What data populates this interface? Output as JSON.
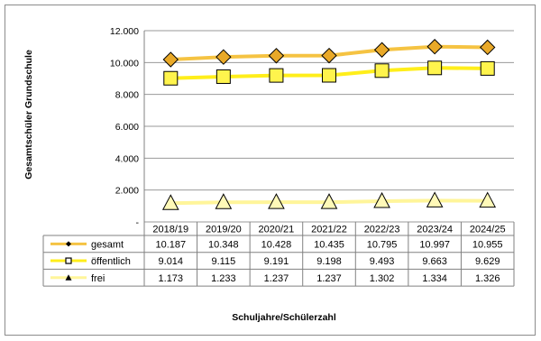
{
  "chart_data": {
    "type": "line",
    "categories": [
      "2018/19",
      "2019/20",
      "2020/21",
      "2021/22",
      "2022/23",
      "2023/24",
      "2024/25"
    ],
    "series": [
      {
        "name": "gesamt",
        "values": [
          10187,
          10348,
          10428,
          10435,
          10795,
          10997,
          10955
        ],
        "labels": [
          "10.187",
          "10.348",
          "10.428",
          "10.435",
          "10.795",
          "10.997",
          "10.955"
        ],
        "color": "#F5C342",
        "marker": "diamond",
        "marker_fill": "#E9A928"
      },
      {
        "name": "öffentlich",
        "values": [
          9014,
          9115,
          9191,
          9198,
          9493,
          9663,
          9629
        ],
        "labels": [
          "9.014",
          "9.115",
          "9.191",
          "9.198",
          "9.493",
          "9.663",
          "9.629"
        ],
        "color": "#FFEE1A",
        "marker": "square",
        "marker_fill": "#FFF44D"
      },
      {
        "name": "frei",
        "values": [
          1173,
          1233,
          1237,
          1237,
          1302,
          1334,
          1326
        ],
        "labels": [
          "1.173",
          "1.233",
          "1.237",
          "1.237",
          "1.302",
          "1.334",
          "1.326"
        ],
        "color": "#FFF59A",
        "marker": "triangle",
        "marker_fill": "#FFF9B8"
      }
    ],
    "ylabel": "Gesamtschüler Grundschule",
    "xlabel": "Schuljahre/Schülerzahl",
    "ylim": [
      0,
      12000
    ],
    "yticks": [
      0,
      2000,
      4000,
      6000,
      8000,
      10000,
      12000
    ],
    "ytick_labels": [
      "-",
      "2.000",
      "4.000",
      "6.000",
      "8.000",
      "10.000",
      "12.000"
    ],
    "grid": true,
    "legend": "data-table-left"
  }
}
